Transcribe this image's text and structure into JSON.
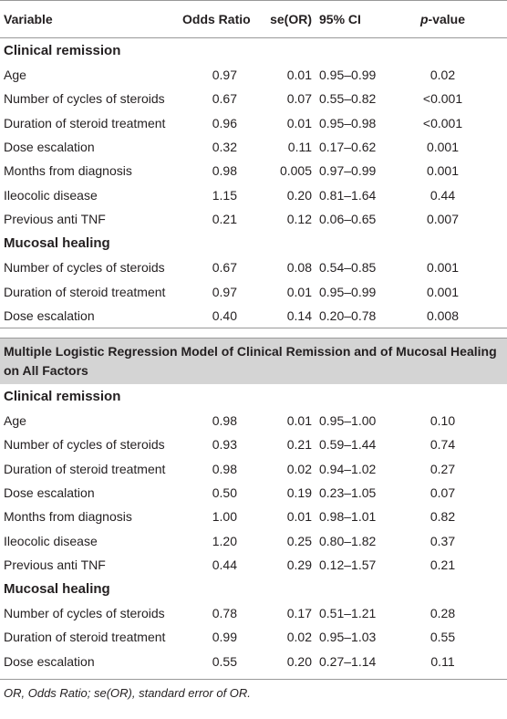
{
  "table": {
    "header": [
      "Variable",
      "Odds Ratio",
      "se(OR)",
      "95% CI",
      "p-value"
    ],
    "blocks": [
      {
        "sections": [
          {
            "title": "Clinical remission",
            "rows": [
              [
                "Age",
                "0.97",
                "0.01",
                "0.95–0.99",
                "0.02"
              ],
              [
                "Number of cycles of steroids",
                "0.67",
                "0.07",
                "0.55–0.82",
                "<0.001"
              ],
              [
                "Duration of steroid treatment",
                "0.96",
                "0.01",
                "0.95–0.98",
                "<0.001"
              ],
              [
                "Dose escalation",
                "0.32",
                "0.11",
                "0.17–0.62",
                "0.001"
              ],
              [
                "Months from diagnosis",
                "0.98",
                "0.005",
                "0.97–0.99",
                "0.001"
              ],
              [
                "Ileocolic disease",
                "1.15",
                "0.20",
                "0.81–1.64",
                "0.44"
              ],
              [
                "Previous anti TNF",
                "0.21",
                "0.12",
                "0.06–0.65",
                "0.007"
              ]
            ]
          },
          {
            "title": "Mucosal healing",
            "rows": [
              [
                "Number of cycles of steroids",
                "0.67",
                "0.08",
                "0.54–0.85",
                "0.001"
              ],
              [
                "Duration of steroid treatment",
                "0.97",
                "0.01",
                "0.95–0.99",
                "0.001"
              ],
              [
                "Dose escalation",
                "0.40",
                "0.14",
                "0.20–0.78",
                "0.008"
              ]
            ]
          }
        ]
      },
      {
        "title": "Multiple Logistic Regression Model of Clinical Remission and of Mucosal Healing on All Factors",
        "sections": [
          {
            "title": "Clinical remission",
            "rows": [
              [
                "Age",
                "0.98",
                "0.01",
                "0.95–1.00",
                "0.10"
              ],
              [
                "Number of cycles of steroids",
                "0.93",
                "0.21",
                "0.59–1.44",
                "0.74"
              ],
              [
                "Duration of steroid treatment",
                "0.98",
                "0.02",
                "0.94–1.02",
                "0.27"
              ],
              [
                "Dose escalation",
                "0.50",
                "0.19",
                "0.23–1.05",
                "0.07"
              ],
              [
                "Months from diagnosis",
                "1.00",
                "0.01",
                "0.98–1.01",
                "0.82"
              ],
              [
                "Ileocolic disease",
                "1.20",
                "0.25",
                "0.80–1.82",
                "0.37"
              ],
              [
                "Previous anti TNF",
                "0.44",
                "0.29",
                "0.12–1.57",
                "0.21"
              ]
            ]
          },
          {
            "title": "Mucosal healing",
            "rows": [
              [
                "Number of cycles of steroids",
                "0.78",
                "0.17",
                "0.51–1.21",
                "0.28"
              ],
              [
                "Duration of steroid treatment",
                "0.99",
                "0.02",
                "0.95–1.03",
                "0.55"
              ],
              [
                "Dose escalation",
                "0.55",
                "0.20",
                "0.27–1.14",
                "0.11"
              ]
            ]
          }
        ]
      }
    ],
    "footnote": "OR, Odds Ratio; se(OR), standard error of OR."
  }
}
